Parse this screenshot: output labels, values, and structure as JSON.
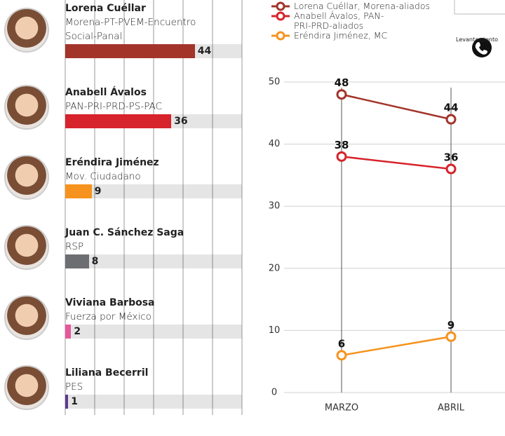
{
  "chart_data": [
    {
      "type": "bar",
      "categories": [
        "Lorena Cuéllar",
        "Anabell Ávalos",
        "Eréndira Jiménez",
        "Juan C. Sánchez Saga",
        "Viviana Barbosa",
        "Liliana Becerril"
      ],
      "parties": [
        "Morena-PT-PVEM-Encuentro Social-Panal",
        "PAN-PRI-PRD-PS-PAC",
        "Mov. Ciudadano",
        "RSP",
        "Fuerza por México",
        "PES"
      ],
      "values": [
        44,
        36,
        9,
        8,
        2,
        1
      ],
      "colors": [
        "#a3342a",
        "#d7232b",
        "#f6931e",
        "#6d6e71",
        "#e6579b",
        "#5d3a8e"
      ],
      "xlim": [
        0,
        60
      ],
      "xticks": [
        0,
        10,
        20,
        30,
        40,
        50,
        60
      ]
    },
    {
      "type": "line",
      "x": [
        "MARZO",
        "ABRIL"
      ],
      "series": [
        {
          "name": "Lorena Cuéllar, Morena-aliados",
          "color": "#a3342a",
          "values": [
            48,
            44
          ]
        },
        {
          "name": "Anabell Ávalos, PAN-PRI-PRD-aliados",
          "color": "#d7232b",
          "values": [
            38,
            36
          ]
        },
        {
          "name": "Eréndira Jiménez, MC",
          "color": "#f6931e",
          "values": [
            6,
            9
          ]
        }
      ],
      "ylim": [
        0,
        50
      ],
      "yticks": [
        0,
        10,
        20,
        30,
        40,
        50
      ],
      "grid": true
    }
  ],
  "source_label": "Levantamiento"
}
